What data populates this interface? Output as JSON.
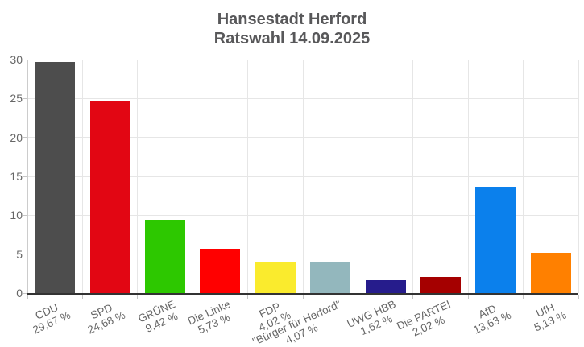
{
  "chart_data": {
    "type": "bar",
    "title": "Hansestadt Herford",
    "subtitle": "Ratswahl 14.09.2025",
    "categories": [
      "CDU",
      "SPD",
      "GRÜNE",
      "Die Linke",
      "FDP",
      "\"Bürger für Herford\"",
      "UWG HBB",
      "Die PARTEI",
      "AfD",
      "UfH"
    ],
    "values": [
      29.67,
      24.68,
      9.42,
      5.73,
      4.02,
      4.07,
      1.62,
      2.02,
      13.63,
      5.13
    ],
    "value_labels": [
      "29,67 %",
      "24,68 %",
      "9,42 %",
      "5,73 %",
      "4,02 %",
      "4,07 %",
      "1,62 %",
      "2,02 %",
      "13,63 %",
      "5,13 %"
    ],
    "bar_colors": [
      "#4d4d4d",
      "#e20613",
      "#2dc800",
      "#ff0000",
      "#faeb2d",
      "#93b7bd",
      "#261c8c",
      "#a50000",
      "#0b80ec",
      "#ff8000"
    ],
    "xlabel": "",
    "ylabel": "",
    "ylim": [
      0,
      30
    ],
    "yticks": [
      0,
      5,
      10,
      15,
      20,
      25,
      30
    ],
    "grid": "on",
    "legend": "none",
    "colors": {
      "title_text": "#58585a",
      "axis_labels": "#666666",
      "gridline": "#e6e6e6",
      "x_axis_line": "#333333",
      "tick": "#c6c6c6",
      "background": "#ffffff"
    }
  }
}
